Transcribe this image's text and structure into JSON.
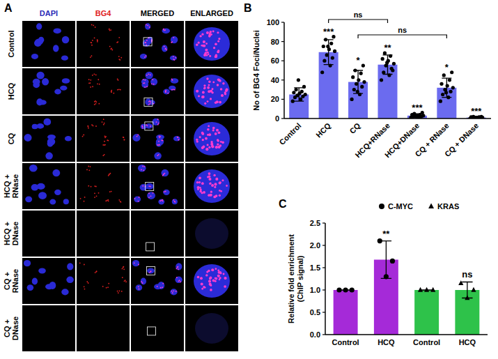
{
  "microscopy": {
    "panel": "A",
    "columns": [
      {
        "label": "DAPI",
        "color": "#2b2bb8"
      },
      {
        "label": "BG4",
        "color": "#e01e1e"
      },
      {
        "label": "MERGED",
        "color": "#000000"
      },
      {
        "label": "ENLARGED",
        "color": "#000000"
      }
    ],
    "rows": [
      {
        "label": "Control",
        "stained": true
      },
      {
        "label": "HCQ",
        "stained": true
      },
      {
        "label": "CQ",
        "stained": true
      },
      {
        "label": "HCQ + RNase",
        "stained": true
      },
      {
        "label": "HCQ + DNase",
        "stained": false
      },
      {
        "label": "CQ + RNase",
        "stained": true
      },
      {
        "label": "CQ + DNase",
        "stained": false
      }
    ]
  },
  "chart_data": [
    {
      "type": "bar",
      "panel": "B",
      "ylabel": "No of BG4 Foci/Nuclei",
      "categories": [
        "Control",
        "HCQ",
        "CQ",
        "HCQ+RNase",
        "HCQ+DNase",
        "CQ + RNase",
        "CQ + DNase"
      ],
      "values": [
        25,
        69,
        38,
        56,
        3,
        32,
        1
      ],
      "errors": [
        7,
        13,
        12,
        10,
        2,
        10,
        1
      ],
      "points": [
        [
          18,
          20,
          22,
          23,
          24,
          25,
          26,
          27,
          28,
          30,
          33,
          40
        ],
        [
          48,
          55,
          60,
          63,
          66,
          70,
          72,
          75,
          78,
          82,
          85,
          75
        ],
        [
          20,
          25,
          30,
          33,
          36,
          38,
          40,
          43,
          47,
          50,
          55,
          28
        ],
        [
          40,
          45,
          48,
          52,
          55,
          57,
          60,
          62,
          65,
          68,
          50,
          58
        ],
        [
          1,
          1,
          2,
          2,
          3,
          3,
          3,
          4,
          4,
          5,
          6,
          2
        ],
        [
          18,
          22,
          25,
          28,
          30,
          32,
          34,
          36,
          40,
          45,
          48,
          27
        ],
        [
          0,
          0,
          0.5,
          1,
          1,
          1,
          1,
          1.5,
          1.5,
          2,
          2,
          0.5
        ]
      ],
      "significance": [
        null,
        "***",
        "*",
        "**",
        "***",
        "*",
        "***"
      ],
      "brackets": [
        {
          "categories": [
            1,
            3
          ],
          "label": "ns"
        },
        {
          "categories": [
            2,
            5
          ],
          "label": "ns"
        }
      ],
      "color": "#6b6bef",
      "ylim": [
        0,
        100
      ],
      "yticks": [
        0,
        20,
        40,
        60,
        80,
        100
      ]
    },
    {
      "type": "bar",
      "panel": "C",
      "ylabel": "Relative fold enrichment (ChIP signal)",
      "categories": [
        "Control",
        "HCQ",
        "Control",
        "HCQ"
      ],
      "series": [
        {
          "name": "C-MYC",
          "color": "#a52ad8",
          "marker": "circle",
          "values": [
            1,
            1.68,
            null,
            null
          ],
          "errors": [
            0,
            0.42,
            null,
            null
          ],
          "points": [
            [
              1,
              1,
              1
            ],
            [
              2.1,
              1.3,
              1.65
            ],
            null,
            null
          ],
          "significance": [
            null,
            "**",
            null,
            null
          ]
        },
        {
          "name": "KRAS",
          "color": "#2ec24a",
          "marker": "triangle",
          "values": [
            null,
            null,
            1,
            1
          ],
          "errors": [
            null,
            null,
            0,
            0.18
          ],
          "points": [
            null,
            null,
            [
              1,
              1,
              1
            ],
            [
              1.15,
              0.82,
              1.0
            ]
          ],
          "significance": [
            null,
            null,
            null,
            "ns"
          ]
        }
      ],
      "ylim": [
        0,
        2.5
      ],
      "yticks": [
        {
          "value": 0,
          "label": "0.0"
        },
        {
          "value": 0.5,
          "label": "0.5"
        },
        {
          "value": 1,
          "label": "1.0"
        },
        {
          "value": 1.5,
          "label": "1.5"
        },
        {
          "value": 2,
          "label": "2.0"
        },
        {
          "value": 2.5,
          "label": "2.5"
        }
      ],
      "legend": "top"
    }
  ]
}
